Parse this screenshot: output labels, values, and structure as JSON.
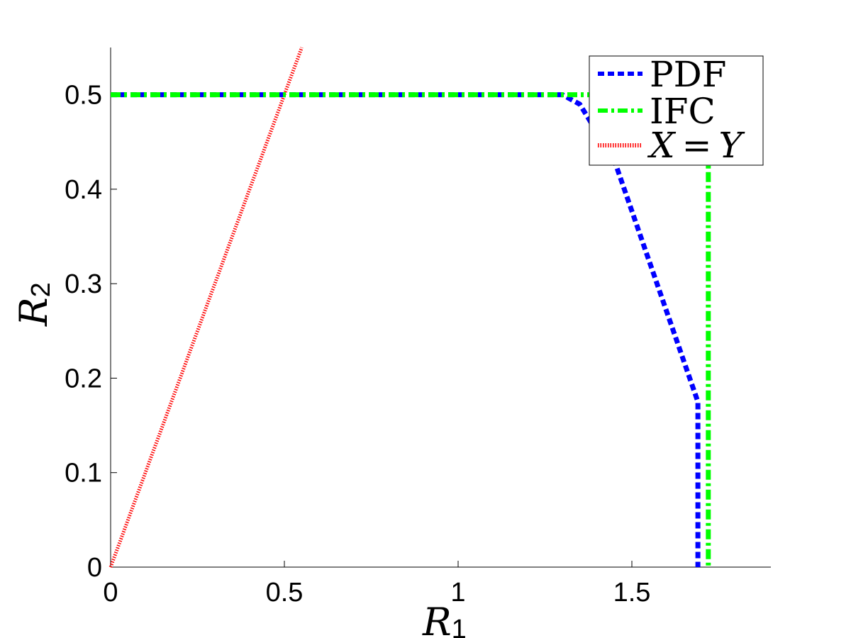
{
  "chart_data": {
    "type": "line",
    "xlabel": "R",
    "xlabel_sub": "1",
    "ylabel": "R",
    "ylabel_sub": "2",
    "xlim": [
      0,
      1.9
    ],
    "ylim": [
      0,
      0.55
    ],
    "xticks": [
      0,
      0.5,
      1,
      1.5
    ],
    "xtick_labels": [
      "0",
      "0.5",
      "1",
      "1.5"
    ],
    "yticks": [
      0,
      0.1,
      0.2,
      0.3,
      0.4,
      0.5
    ],
    "ytick_labels": [
      "0",
      "0.1",
      "0.2",
      "0.3",
      "0.4",
      "0.5"
    ],
    "legend_position": "top-right",
    "series": [
      {
        "name": "PDF",
        "color": "#0000ff",
        "style": "dashed",
        "x": [
          0,
          1.3,
          1.35,
          1.45,
          1.69,
          1.69
        ],
        "y": [
          0.5,
          0.5,
          0.49,
          0.43,
          0.175,
          0
        ]
      },
      {
        "name": "IFC",
        "color": "#00ff00",
        "style": "dash-dot",
        "x": [
          0,
          1.72,
          1.72
        ],
        "y": [
          0.5,
          0.5,
          0
        ]
      },
      {
        "name": "X = Y",
        "name_parts": [
          "X",
          "=",
          "Y"
        ],
        "color": "#ff0000",
        "style": "dotted",
        "x": [
          0,
          0.55
        ],
        "y": [
          0,
          0.55
        ]
      }
    ]
  }
}
